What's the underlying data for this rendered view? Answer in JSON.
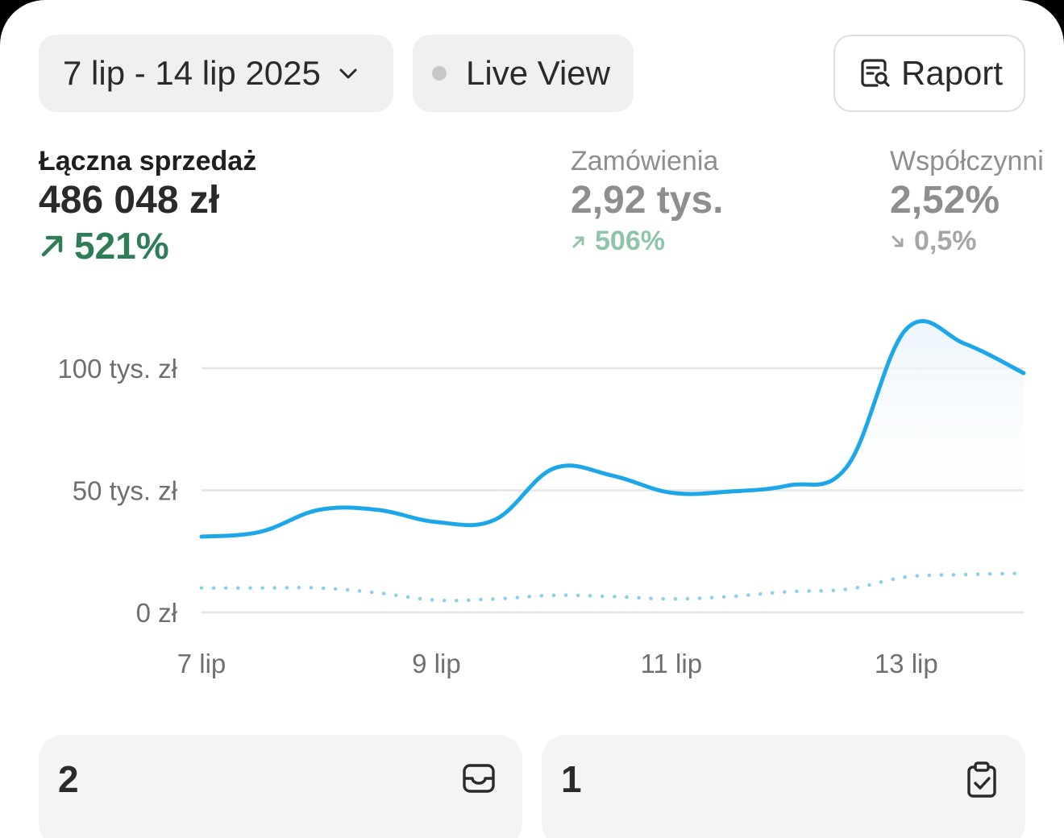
{
  "toolbar": {
    "date_range": "7 lip - 14 lip 2025",
    "live_view_label": "Live View",
    "report_label": "Raport"
  },
  "metrics": [
    {
      "label": "Łączna sprzedaż",
      "value": "486 048 zł",
      "delta": "521%",
      "direction": "up",
      "active": true
    },
    {
      "label": "Zamówienia",
      "value": "2,92 tys.",
      "delta": "506%",
      "direction": "up",
      "active": false
    },
    {
      "label": "Współczynni",
      "value": "2,52%",
      "delta": "0,5%",
      "direction": "down",
      "active": false
    }
  ],
  "chart_data": {
    "type": "line",
    "x": [
      "7 lip",
      "7.5",
      "8 lip",
      "8.5",
      "9 lip",
      "9.5",
      "10 lip",
      "10.5",
      "11 lip",
      "11.5",
      "12 lip",
      "12.5",
      "13 lip",
      "13.5",
      "14 lip"
    ],
    "xticks": [
      "7 lip",
      "9 lip",
      "11 lip",
      "13 lip"
    ],
    "yticks": [
      "0 zł",
      "50 tys. zł",
      "100 tys. zł"
    ],
    "ylim": [
      0,
      120000
    ],
    "series": [
      {
        "style": "solid",
        "color": "#1ea7e8",
        "values": [
          31000,
          33000,
          42000,
          42000,
          37000,
          38000,
          59000,
          56000,
          49000,
          49500,
          52000,
          60000,
          116000,
          110000,
          98000
        ]
      },
      {
        "style": "dotted",
        "color": "#8ccfe8",
        "values": [
          10000,
          10000,
          10000,
          8000,
          5000,
          5500,
          7000,
          6500,
          5500,
          6500,
          8500,
          9500,
          14500,
          15500,
          16000
        ]
      }
    ],
    "grid": true
  },
  "tiles": [
    {
      "number": "2",
      "icon": "inbox-icon"
    },
    {
      "number": "1",
      "icon": "clipboard-check-icon"
    }
  ],
  "colors": {
    "accent": "#1ea7e8",
    "positive": "#2e7d57",
    "positive_muted": "#8fc4a8"
  }
}
